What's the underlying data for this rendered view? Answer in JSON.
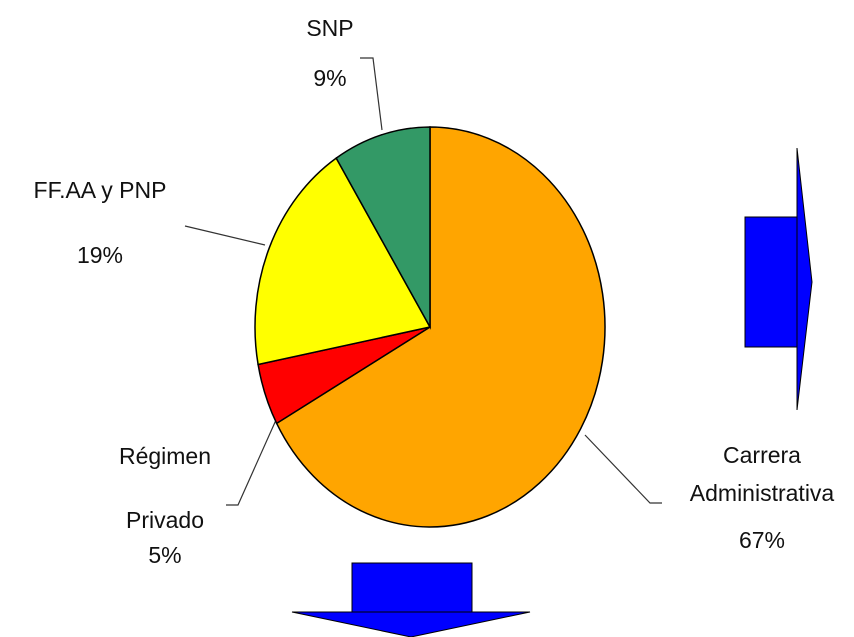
{
  "chart_data": {
    "type": "pie",
    "categories": [
      "Carrera Administrativa",
      "Régimen Privado",
      "FF.AA y PNP",
      "SNP"
    ],
    "values": [
      67,
      5,
      19,
      9
    ],
    "value_labels": [
      "67%",
      "5%",
      "19%",
      "9%"
    ],
    "colors": [
      "#ffa500",
      "#ff0000",
      "#ffff00",
      "#339966"
    ]
  }
}
